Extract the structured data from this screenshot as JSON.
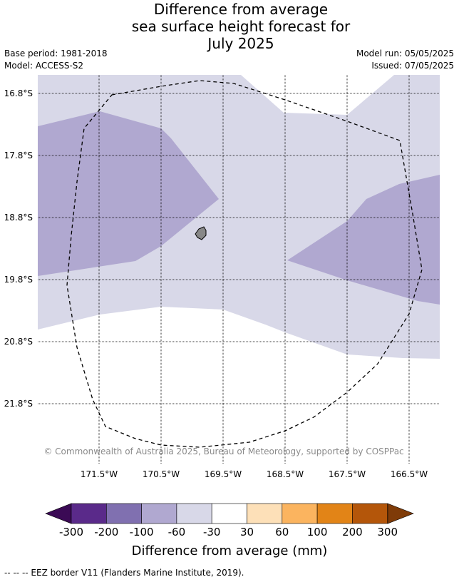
{
  "title_lines": [
    "Difference from average",
    "sea surface height forecast for",
    "July 2025"
  ],
  "meta": {
    "base_period": "Base period: 1981-2018",
    "model": "Model: ACCESS-S2",
    "model_run": "Model run: 05/05/2025",
    "issued": "Issued: 07/05/2025"
  },
  "map": {
    "latitude_labels": [
      "16.8°S",
      "17.8°S",
      "18.8°S",
      "19.8°S",
      "20.8°S",
      "21.8°S"
    ],
    "longitude_labels": [
      "171.5°W",
      "170.5°W",
      "169.5°W",
      "168.5°W",
      "167.5°W",
      "166.5°W"
    ],
    "copyright": "© Commonwealth of Australia 2025, Bureau of Meteorology, supported by COSPPac",
    "zones": [
      {
        "category": "-100 to -60",
        "color": "#b0a8d0"
      },
      {
        "category": "-60 to -30",
        "color": "#d8d8e8"
      },
      {
        "category": "-30 to 30",
        "color": "#ffffff"
      }
    ],
    "land_color": "#888888"
  },
  "colorbar": {
    "title": "Difference from average (mm)",
    "ticks": [
      "-300",
      "-200",
      "-100",
      "-60",
      "-30",
      "30",
      "60",
      "100",
      "200",
      "300"
    ],
    "colors": [
      "#5a2a8a",
      "#8070b0",
      "#b0a8d0",
      "#d8d8e8",
      "#ffffff",
      "#fde0b8",
      "#fbb45f",
      "#e28417",
      "#b4560a"
    ],
    "extend_low_color": "#3b0a55",
    "extend_high_color": "#7f3b08"
  },
  "footnote": "--  --  -- EEZ border V11 (Flanders Marine Institute, 2019)."
}
